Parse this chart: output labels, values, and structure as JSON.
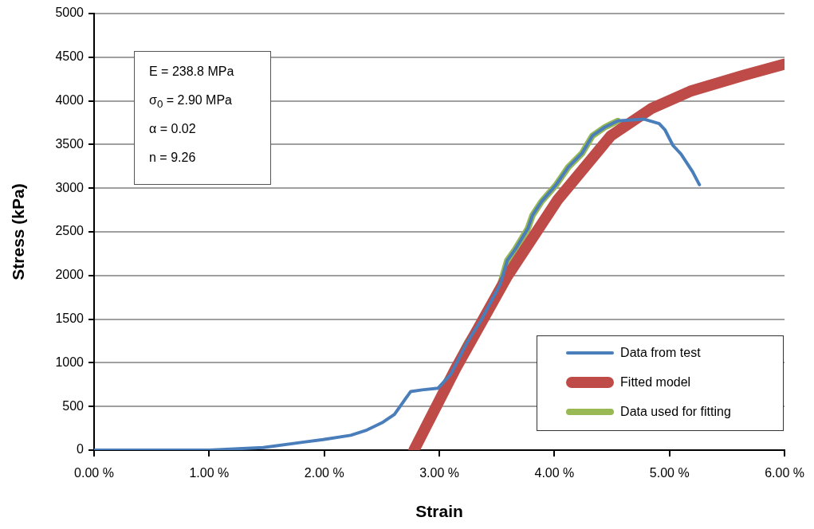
{
  "chart_data": {
    "type": "line",
    "xlabel": "Strain",
    "ylabel": "Stress (kPa)",
    "xlim": [
      0,
      6
    ],
    "ylim": [
      0,
      5000
    ],
    "xticks": [
      {
        "value": 0,
        "label": "0.00 %"
      },
      {
        "value": 1,
        "label": "1.00 %"
      },
      {
        "value": 2,
        "label": "2.00 %"
      },
      {
        "value": 3,
        "label": "3.00 %"
      },
      {
        "value": 4,
        "label": "4.00 %"
      },
      {
        "value": 5,
        "label": "5.00 %"
      },
      {
        "value": 6,
        "label": "6.00 %"
      }
    ],
    "yticks": [
      0,
      500,
      1000,
      1500,
      2000,
      2500,
      3000,
      3500,
      4000,
      4500,
      5000
    ],
    "grid": "y",
    "legend": "bottom right",
    "marker": "none",
    "line_style": "solid",
    "annotations": [
      "E = 238.8 MPa",
      "σ$_{0}$ = 2.90 MPa",
      "α = 0.02",
      "n = 9.26"
    ],
    "series": [
      {
        "name": "Data from test",
        "color": "#4a7ebb",
        "x": [
          0,
          1.0,
          1.47,
          1.81,
          1.99,
          2.23,
          2.37,
          2.51,
          2.61,
          2.68,
          2.75,
          2.85,
          2.99,
          3.1,
          3.24,
          3.36,
          3.53,
          3.59,
          3.66,
          3.77,
          3.81,
          3.89,
          4.01,
          4.12,
          4.24,
          4.33,
          4.44,
          4.55,
          4.78,
          4.91,
          4.96,
          5.03,
          5.1,
          5.2,
          5.26
        ],
        "values": [
          0,
          0,
          30,
          90,
          120,
          170,
          230,
          320,
          410,
          540,
          670,
          690,
          710,
          870,
          1230,
          1480,
          1900,
          2170,
          2300,
          2540,
          2690,
          2850,
          3030,
          3240,
          3400,
          3600,
          3700,
          3770,
          3790,
          3740,
          3670,
          3490,
          3390,
          3190,
          3040
        ]
      },
      {
        "name": "Fitted model",
        "color": "#be4b48",
        "x": [
          2.78,
          3.14,
          3.59,
          4.03,
          4.49,
          4.84,
          5.18,
          5.64,
          6.0
        ],
        "values": [
          0,
          930,
          1990,
          2870,
          3600,
          3910,
          4110,
          4290,
          4420
        ]
      },
      {
        "name": "Data used for fitting",
        "color": "#98b954",
        "x": [
          3.03,
          3.1,
          3.24,
          3.36,
          3.53,
          3.59,
          3.66,
          3.77,
          3.81,
          3.89,
          4.01,
          4.12,
          4.24,
          4.33,
          4.44,
          4.55
        ],
        "values": [
          720,
          870,
          1230,
          1480,
          1900,
          2170,
          2300,
          2540,
          2690,
          2850,
          3030,
          3240,
          3400,
          3600,
          3700,
          3770
        ]
      }
    ]
  }
}
